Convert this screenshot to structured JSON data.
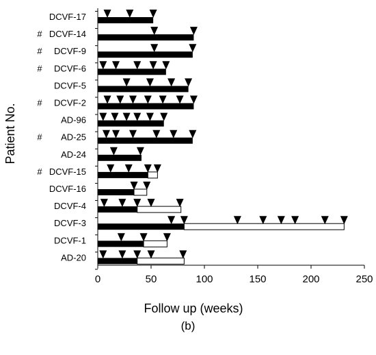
{
  "figure_label": "(b)",
  "chart_data": {
    "type": "bar",
    "orientation": "horizontal",
    "xlabel": "Follow up (weeks)",
    "ylabel": "Patient No.",
    "xlim": [
      0,
      250
    ],
    "xticks": [
      0,
      50,
      100,
      150,
      200,
      250
    ],
    "grid": false,
    "legend": "none",
    "colors": {
      "filled": "#000000",
      "open": "#ffffff",
      "marker": "#000000"
    },
    "series": [
      {
        "name": "",
        "style": "filled black bar"
      },
      {
        "name": "",
        "style": "open white bar"
      },
      {
        "name": "",
        "style": "inverted triangle marker"
      }
    ],
    "rows": [
      {
        "patient": "DCVF-17",
        "mark": "",
        "filled": 52,
        "total": 52,
        "markers": [
          9,
          30,
          52
        ]
      },
      {
        "patient": "DCVF-14",
        "mark": "#",
        "filled": 90,
        "total": 90,
        "markers": [
          53,
          90
        ]
      },
      {
        "patient": "DCVF-9",
        "mark": "#",
        "filled": 89,
        "total": 89,
        "markers": [
          53,
          89
        ]
      },
      {
        "patient": "DCVF-6",
        "mark": "#",
        "filled": 64,
        "total": 64,
        "markers": [
          5,
          17,
          37,
          52,
          64
        ]
      },
      {
        "patient": "DCVF-5",
        "mark": "",
        "filled": 85,
        "total": 85,
        "markers": [
          27,
          49,
          69,
          85
        ]
      },
      {
        "patient": "DCVF-2",
        "mark": "#",
        "filled": 90,
        "total": 90,
        "markers": [
          9,
          21,
          33,
          47,
          61,
          77,
          90
        ]
      },
      {
        "patient": "AD-96",
        "mark": "",
        "filled": 62,
        "total": 62,
        "markers": [
          5,
          16,
          27,
          37,
          49,
          62
        ]
      },
      {
        "patient": "AD-25",
        "mark": "#",
        "filled": 89,
        "total": 89,
        "markers": [
          8,
          17,
          33,
          55,
          71,
          89
        ]
      },
      {
        "patient": "AD-24",
        "mark": "",
        "filled": 41,
        "total": 41,
        "markers": [
          15,
          40
        ]
      },
      {
        "patient": "DCVF-15",
        "mark": "#",
        "filled": 47,
        "total": 56,
        "markers": [
          12,
          29,
          47,
          56
        ]
      },
      {
        "patient": "DCVF-16",
        "mark": "",
        "filled": 34,
        "total": 46,
        "markers": [
          34,
          46
        ]
      },
      {
        "patient": "DCVF-4",
        "mark": "",
        "filled": 37,
        "total": 78,
        "markers": [
          6,
          23,
          37,
          50,
          77
        ]
      },
      {
        "patient": "DCVF-3",
        "mark": "",
        "filled": 81,
        "total": 231,
        "markers": [
          69,
          81,
          131,
          155,
          172,
          185,
          213,
          231
        ]
      },
      {
        "patient": "DCVF-1",
        "mark": "",
        "filled": 43,
        "total": 65,
        "markers": [
          22,
          43,
          65
        ]
      },
      {
        "patient": "AD-20",
        "mark": "",
        "filled": 37,
        "total": 81,
        "markers": [
          5,
          23,
          37,
          50,
          80
        ]
      }
    ]
  }
}
